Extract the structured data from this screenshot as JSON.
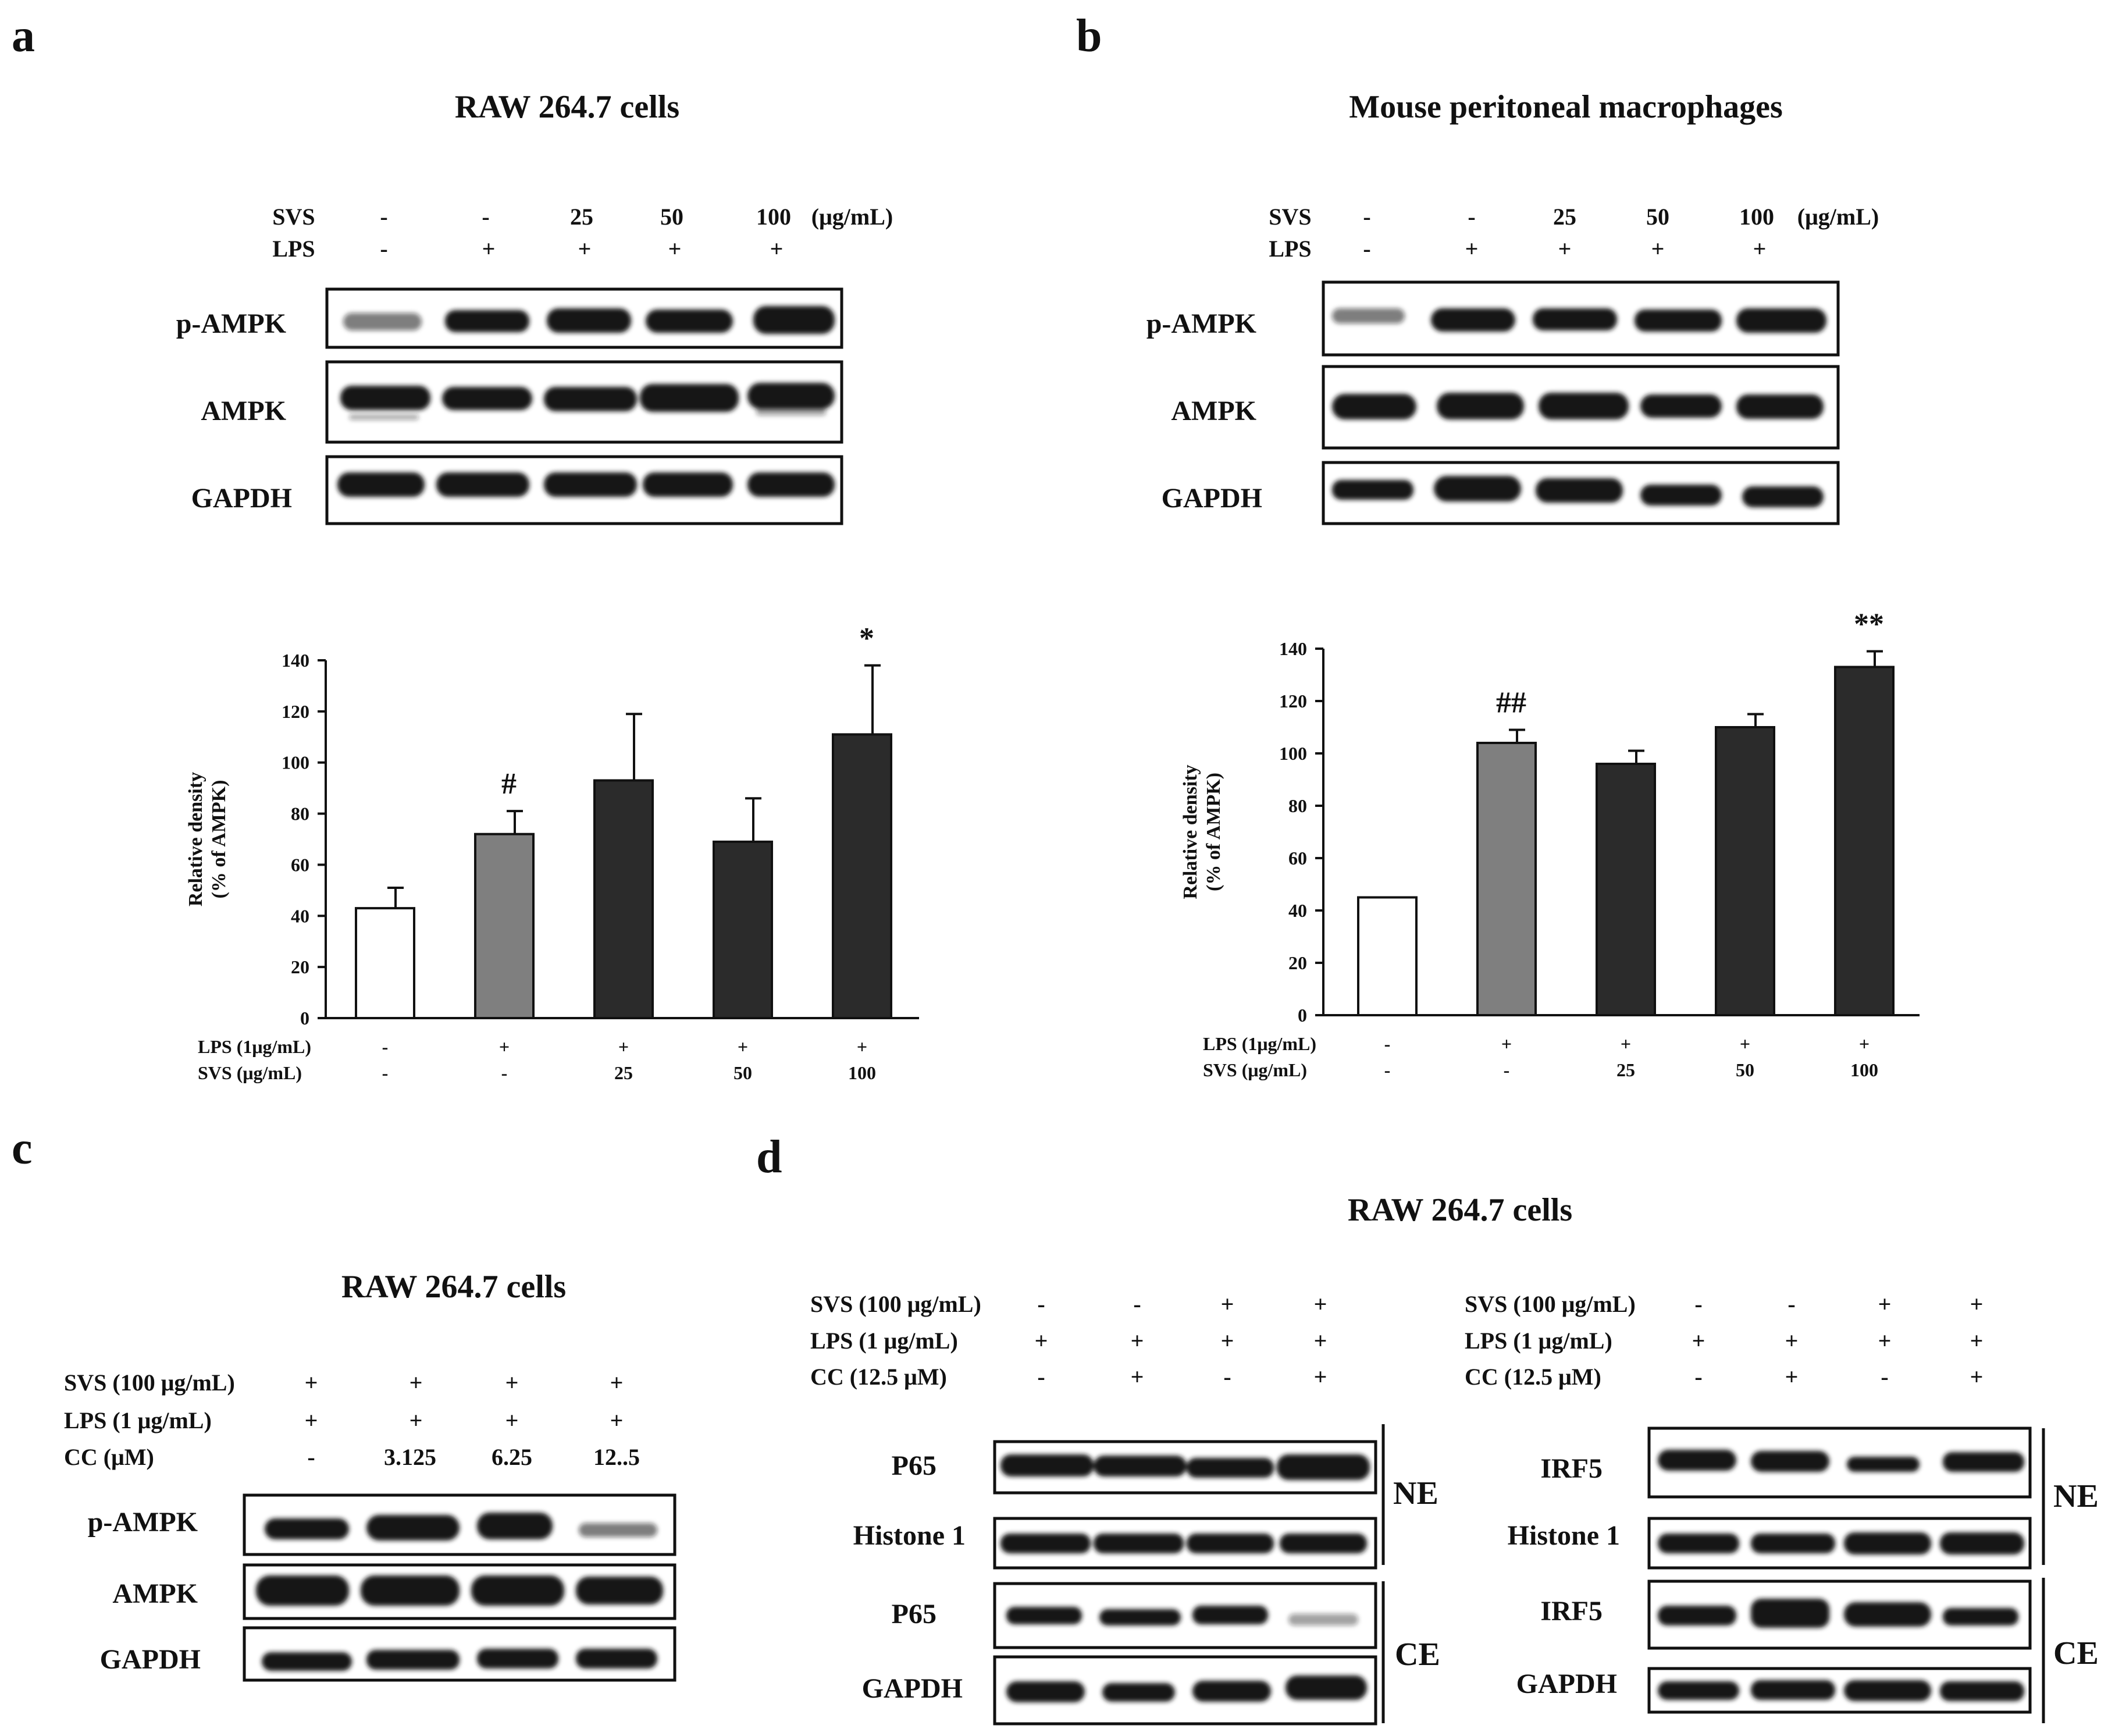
{
  "panels": {
    "a": {
      "label": "a",
      "title": "RAW 264.7 cells",
      "svs_label": "SVS",
      "lps_label": "LPS",
      "svs": [
        "-",
        "-",
        "25",
        "50",
        "100"
      ],
      "lps": [
        "-",
        "+",
        "+",
        "+",
        "+"
      ],
      "unit": "(μg/mL)",
      "rows": [
        "p-AMPK",
        "AMPK",
        "GAPDH"
      ]
    },
    "b": {
      "label": "b",
      "title": "Mouse peritoneal macrophages",
      "svs_label": "SVS",
      "lps_label": "LPS",
      "svs": [
        "-",
        "-",
        "25",
        "50",
        "100"
      ],
      "lps": [
        "-",
        "+",
        "+",
        "+",
        "+"
      ],
      "unit": "(μg/mL)",
      "rows": [
        "p-AMPK",
        "AMPK",
        "GAPDH"
      ]
    },
    "c": {
      "label": "c",
      "title": "RAW 264.7 cells",
      "cond_labels": [
        "SVS (100 μg/mL)",
        "LPS (1 μg/mL)",
        "CC (μM)"
      ],
      "svs": [
        "+",
        "+",
        "+",
        "+"
      ],
      "lps": [
        "+",
        "+",
        "+",
        "+"
      ],
      "cc": [
        "-",
        "3.125",
        "6.25",
        "12..5"
      ],
      "rows": [
        "p-AMPK",
        "AMPK",
        "GAPDH"
      ]
    },
    "d": {
      "label": "d",
      "title": "RAW 264.7 cells",
      "cond_labels": [
        "SVS (100 μg/mL)",
        "LPS (1 μg/mL)",
        "CC (12.5 μM)"
      ],
      "svs": [
        "-",
        "-",
        "+",
        "+"
      ],
      "lps": [
        "+",
        "+",
        "+",
        "+"
      ],
      "cc": [
        "-",
        "+",
        "-",
        "+"
      ],
      "left_rows": [
        "P65",
        "Histone 1",
        "P65",
        "GAPDH"
      ],
      "right_rows": [
        "IRF5",
        "Histone 1",
        "IRF5",
        "GAPDH"
      ],
      "fractions": [
        "NE",
        "CE"
      ]
    }
  },
  "chart_data": [
    {
      "type": "bar",
      "panel": "a",
      "categories": [
        "1",
        "2",
        "3",
        "4",
        "5"
      ],
      "x_rows": [
        {
          "label": "LPS (1μg/mL)",
          "values": [
            "-",
            "+",
            "+",
            "+",
            "+"
          ]
        },
        {
          "label": "SVS (μg/mL)",
          "values": [
            "-",
            "-",
            "25",
            "50",
            "100"
          ]
        }
      ],
      "values": [
        43,
        72,
        93,
        69,
        111
      ],
      "errors": [
        8,
        9,
        26,
        17,
        27
      ],
      "bar_colors": [
        "#ffffff",
        "#7f7f7f",
        "#2b2b2b",
        "#2b2b2b",
        "#2b2b2b"
      ],
      "significance": [
        "",
        "#",
        "",
        "",
        "*"
      ],
      "ylabel_lines": [
        "Relative density",
        "(% of  AMPK)"
      ],
      "ylim": [
        0,
        140
      ],
      "yticks": [
        0,
        20,
        40,
        60,
        80,
        100,
        120,
        140
      ]
    },
    {
      "type": "bar",
      "panel": "b",
      "categories": [
        "1",
        "2",
        "3",
        "4",
        "5"
      ],
      "x_rows": [
        {
          "label": "LPS (1μg/mL)",
          "values": [
            "-",
            "+",
            "+",
            "+",
            "+"
          ]
        },
        {
          "label": "SVS (μg/mL)",
          "values": [
            "-",
            "-",
            "25",
            "50",
            "100"
          ]
        }
      ],
      "values": [
        45,
        104,
        96,
        110,
        133
      ],
      "errors": [
        0,
        5,
        5,
        5,
        6
      ],
      "bar_colors": [
        "#ffffff",
        "#7f7f7f",
        "#2b2b2b",
        "#2b2b2b",
        "#2b2b2b"
      ],
      "significance": [
        "",
        "##",
        "",
        "",
        "**"
      ],
      "ylabel_lines": [
        "Relative density",
        "(% of  AMPK)"
      ],
      "ylim": [
        0,
        140
      ],
      "yticks": [
        0,
        20,
        40,
        60,
        80,
        100,
        120,
        140
      ]
    }
  ]
}
